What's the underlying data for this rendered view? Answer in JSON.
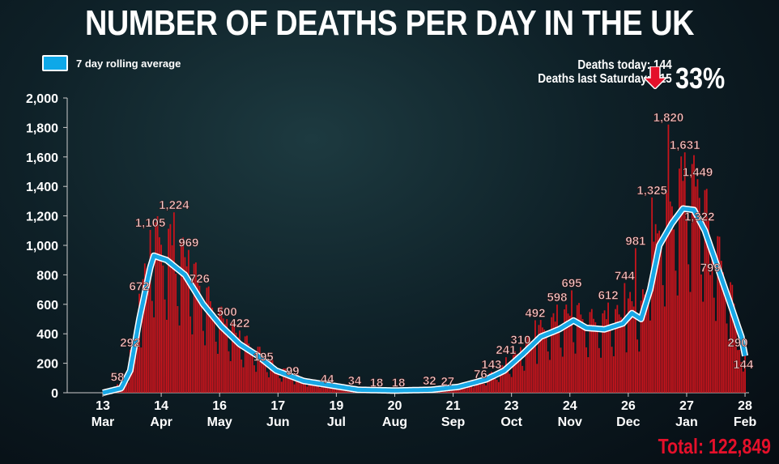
{
  "title": "NUMBER OF DEATHS PER DAY IN THE UK",
  "legend": "7 day rolling average",
  "stats": {
    "today": "Deaths today: 144",
    "last_saturday": "Deaths last Saturday: 215",
    "change": "33%",
    "direction": "down"
  },
  "total": "Total: 122,849",
  "colors": {
    "bar": "#c8141c",
    "line": "#18a8e6",
    "total": "#e4102a"
  },
  "chart_data": {
    "type": "bar",
    "title": "NUMBER OF DEATHS PER DAY IN THE UK",
    "xlabel": "",
    "ylabel": "",
    "ylim": [
      0,
      2000
    ],
    "yticks": [
      "0",
      "200",
      "400",
      "600",
      "800",
      "1,000",
      "1,200",
      "1,400",
      "1,600",
      "1,800",
      "2,000"
    ],
    "xticks": [
      {
        "day": 0,
        "d": "13",
        "m": "Mar"
      },
      {
        "day": 32,
        "d": "14",
        "m": "Apr"
      },
      {
        "day": 64,
        "d": "16",
        "m": "May"
      },
      {
        "day": 96,
        "d": "17",
        "m": "Jun"
      },
      {
        "day": 128,
        "d": "19",
        "m": "Jul"
      },
      {
        "day": 160,
        "d": "20",
        "m": "Aug"
      },
      {
        "day": 192,
        "d": "21",
        "m": "Sep"
      },
      {
        "day": 224,
        "d": "23",
        "m": "Oct"
      },
      {
        "day": 256,
        "d": "24",
        "m": "Nov"
      },
      {
        "day": 288,
        "d": "26",
        "m": "Dec"
      },
      {
        "day": 320,
        "d": "27",
        "m": "Jan"
      },
      {
        "day": 352,
        "d": "28",
        "m": "Feb"
      }
    ],
    "rolling_average": [
      [
        0,
        0
      ],
      [
        10,
        30
      ],
      [
        15,
        150
      ],
      [
        20,
        500
      ],
      [
        26,
        850
      ],
      [
        28,
        930
      ],
      [
        35,
        900
      ],
      [
        45,
        800
      ],
      [
        55,
        600
      ],
      [
        65,
        450
      ],
      [
        75,
        330
      ],
      [
        85,
        250
      ],
      [
        95,
        150
      ],
      [
        110,
        80
      ],
      [
        125,
        50
      ],
      [
        140,
        20
      ],
      [
        160,
        15
      ],
      [
        180,
        20
      ],
      [
        195,
        40
      ],
      [
        210,
        90
      ],
      [
        220,
        150
      ],
      [
        230,
        260
      ],
      [
        240,
        380
      ],
      [
        250,
        430
      ],
      [
        258,
        490
      ],
      [
        265,
        440
      ],
      [
        275,
        430
      ],
      [
        285,
        470
      ],
      [
        290,
        540
      ],
      [
        295,
        500
      ],
      [
        300,
        700
      ],
      [
        305,
        1000
      ],
      [
        312,
        1150
      ],
      [
        318,
        1250
      ],
      [
        324,
        1240
      ],
      [
        330,
        1100
      ],
      [
        337,
        850
      ],
      [
        344,
        600
      ],
      [
        350,
        380
      ],
      [
        352,
        250
      ]
    ],
    "annotations": [
      {
        "day": 8,
        "value": 58,
        "label": "58"
      },
      {
        "day": 15,
        "value": 292,
        "label": "292"
      },
      {
        "day": 20,
        "value": 672,
        "label": "672"
      },
      {
        "day": 26,
        "value": 1105,
        "label": "1,105"
      },
      {
        "day": 39,
        "value": 1224,
        "label": "1,224"
      },
      {
        "day": 47,
        "value": 969,
        "label": "969"
      },
      {
        "day": 53,
        "value": 726,
        "label": "726"
      },
      {
        "day": 68,
        "value": 500,
        "label": "500"
      },
      {
        "day": 75,
        "value": 422,
        "label": "422"
      },
      {
        "day": 88,
        "value": 195,
        "label": "195"
      },
      {
        "day": 104,
        "value": 99,
        "label": "99"
      },
      {
        "day": 123,
        "value": 44,
        "label": "44"
      },
      {
        "day": 138,
        "value": 34,
        "label": "34"
      },
      {
        "day": 150,
        "value": 18,
        "label": "18"
      },
      {
        "day": 162,
        "value": 18,
        "label": "18"
      },
      {
        "day": 179,
        "value": 32,
        "label": "32"
      },
      {
        "day": 189,
        "value": 27,
        "label": "27"
      },
      {
        "day": 207,
        "value": 76,
        "label": "76"
      },
      {
        "day": 213,
        "value": 143,
        "label": "143"
      },
      {
        "day": 221,
        "value": 241,
        "label": "241"
      },
      {
        "day": 229,
        "value": 310,
        "label": "310"
      },
      {
        "day": 237,
        "value": 492,
        "label": "492"
      },
      {
        "day": 249,
        "value": 598,
        "label": "598"
      },
      {
        "day": 257,
        "value": 695,
        "label": "695"
      },
      {
        "day": 277,
        "value": 612,
        "label": "612"
      },
      {
        "day": 286,
        "value": 744,
        "label": "744"
      },
      {
        "day": 292,
        "value": 981,
        "label": "981"
      },
      {
        "day": 301,
        "value": 1325,
        "label": "1,325"
      },
      {
        "day": 310,
        "value": 1820,
        "label": "1,820"
      },
      {
        "day": 319,
        "value": 1631,
        "label": "1,631"
      },
      {
        "day": 326,
        "value": 1449,
        "label": "1,449"
      },
      {
        "day": 327,
        "value": 1322,
        "label": "1,322"
      },
      {
        "day": 333,
        "value": 799,
        "label": "799"
      },
      {
        "day": 348,
        "value": 290,
        "label": "290"
      },
      {
        "day": 351,
        "value": 144,
        "label": "144"
      }
    ]
  }
}
